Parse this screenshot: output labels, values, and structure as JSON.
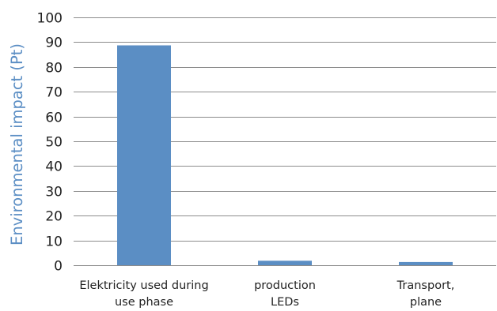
{
  "chart_data": {
    "type": "bar",
    "ylabel": "Environmental impact (Pt)",
    "xlabel": "",
    "ylim": [
      0,
      100
    ],
    "yticks": [
      0,
      10,
      20,
      30,
      40,
      50,
      60,
      70,
      80,
      90,
      100
    ],
    "grid": true,
    "categories": [
      [
        "Elektricity used during",
        "use phase"
      ],
      [
        "production",
        "LEDs"
      ],
      [
        "Transport,",
        "plane"
      ]
    ],
    "values": [
      88.7,
      1.8,
      1.3
    ],
    "bar_color": "#5b8ec4",
    "ylabel_color": "#5b8ec4",
    "grid_color": "#8c8c8c"
  }
}
